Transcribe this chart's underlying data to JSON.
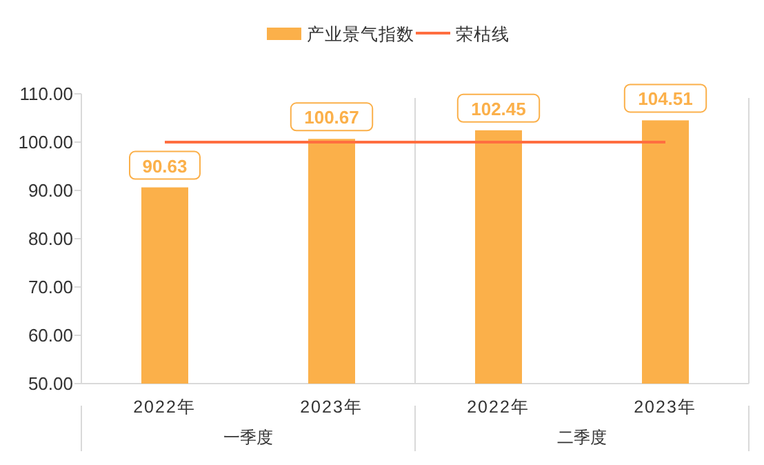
{
  "chart_data": {
    "type": "bar",
    "categories": [
      "2022年",
      "2023年",
      "2022年",
      "2023年"
    ],
    "series": [
      {
        "name": "产业景气指数",
        "color": "#fbb04a",
        "values": [
          90.63,
          100.67,
          102.45,
          104.51
        ],
        "value_labels": [
          "90.63",
          "100.67",
          "102.45",
          "104.51"
        ]
      },
      {
        "name": "荣枯线",
        "type": "line",
        "color": "#ff6e40",
        "values": [
          100,
          100,
          100,
          100
        ]
      }
    ],
    "ylim": [
      50,
      110
    ],
    "yticks": [
      {
        "value": 50,
        "label": "50.00"
      },
      {
        "value": 60,
        "label": "60.00"
      },
      {
        "value": 70,
        "label": "70.00"
      },
      {
        "value": 80,
        "label": "80.00"
      },
      {
        "value": 90,
        "label": "90.00"
      },
      {
        "value": 100,
        "label": "100.00"
      },
      {
        "value": 110,
        "label": "110.00"
      }
    ],
    "legend": "top",
    "annotations": [
      "一季度",
      "二季度"
    ]
  }
}
